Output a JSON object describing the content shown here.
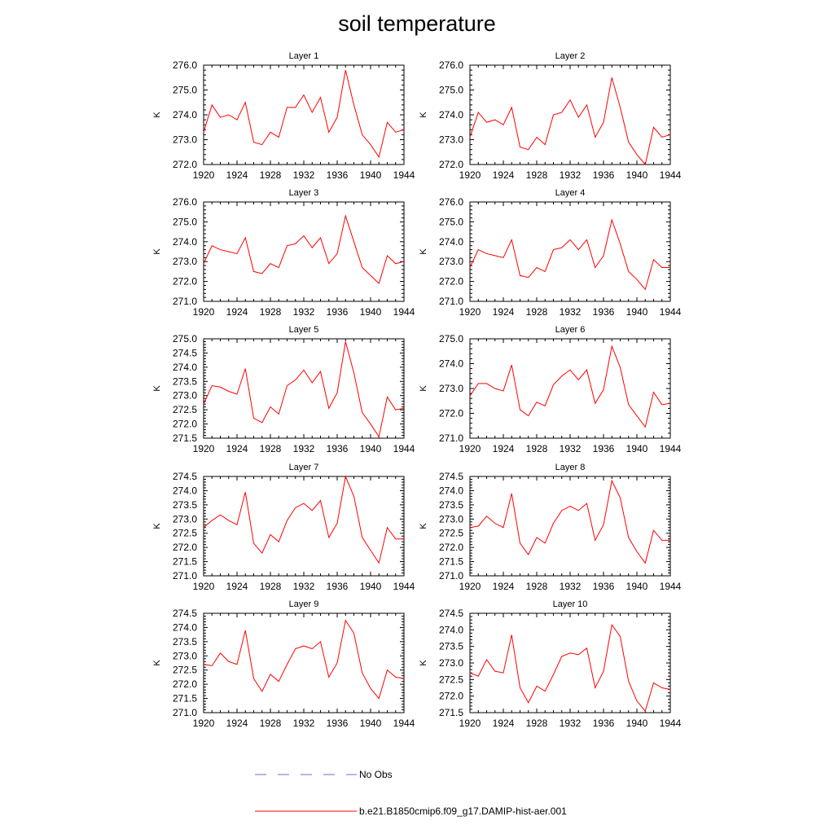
{
  "title": "soil temperature",
  "legend": [
    {
      "label": "No Obs",
      "color": "#6f6fc8",
      "dash": "14,14"
    },
    {
      "label": "b.e21.B1850cmip6.f09_g17.DAMIP-hist-aer.001",
      "color": "#ff0000",
      "dash": ""
    }
  ],
  "chart_data": [
    {
      "type": "line",
      "title": "Layer 1",
      "ylabel": "K",
      "xlim": [
        1920,
        1944
      ],
      "ylim": [
        272.0,
        276.0
      ],
      "xticks": [
        "1920",
        "1924",
        "1928",
        "1932",
        "1936",
        "1940",
        "1944"
      ],
      "yticks": [
        "272.0",
        "273.0",
        "274.0",
        "275.0",
        "276.0"
      ],
      "x": [
        1920,
        1921,
        1922,
        1923,
        1924,
        1925,
        1926,
        1927,
        1928,
        1929,
        1930,
        1931,
        1932,
        1933,
        1934,
        1935,
        1936,
        1937,
        1938,
        1939,
        1940,
        1941,
        1942,
        1943,
        1944
      ],
      "series": [
        {
          "color": "#ff0000",
          "values": [
            273.3,
            274.4,
            273.9,
            274.0,
            273.8,
            274.5,
            272.9,
            272.8,
            273.3,
            273.1,
            274.3,
            274.3,
            274.8,
            274.1,
            274.7,
            273.3,
            273.9,
            275.8,
            274.4,
            273.2,
            272.8,
            272.3,
            273.7,
            273.3,
            273.4
          ]
        }
      ]
    },
    {
      "type": "line",
      "title": "Layer 2",
      "ylabel": "K",
      "xlim": [
        1920,
        1944
      ],
      "ylim": [
        272.0,
        276.0
      ],
      "xticks": [
        "1920",
        "1924",
        "1928",
        "1932",
        "1936",
        "1940",
        "1944"
      ],
      "yticks": [
        "272.0",
        "273.0",
        "274.0",
        "275.0",
        "276.0"
      ],
      "x": [
        1920,
        1921,
        1922,
        1923,
        1924,
        1925,
        1926,
        1927,
        1928,
        1929,
        1930,
        1931,
        1932,
        1933,
        1934,
        1935,
        1936,
        1937,
        1938,
        1939,
        1940,
        1941,
        1942,
        1943,
        1944
      ],
      "series": [
        {
          "color": "#ff0000",
          "values": [
            273.1,
            274.1,
            273.7,
            273.8,
            273.6,
            274.3,
            272.7,
            272.6,
            273.1,
            272.8,
            274.0,
            274.1,
            274.6,
            273.9,
            274.4,
            273.1,
            273.7,
            275.5,
            274.3,
            272.9,
            272.4,
            272.0,
            273.5,
            273.1,
            273.2
          ]
        }
      ]
    },
    {
      "type": "line",
      "title": "Layer 3",
      "ylabel": "K",
      "xlim": [
        1920,
        1944
      ],
      "ylim": [
        271.0,
        276.0
      ],
      "xticks": [
        "1920",
        "1924",
        "1928",
        "1932",
        "1936",
        "1940",
        "1944"
      ],
      "yticks": [
        "271.0",
        "272.0",
        "273.0",
        "274.0",
        "275.0",
        "276.0"
      ],
      "x": [
        1920,
        1921,
        1922,
        1923,
        1924,
        1925,
        1926,
        1927,
        1928,
        1929,
        1930,
        1931,
        1932,
        1933,
        1934,
        1935,
        1936,
        1937,
        1938,
        1939,
        1940,
        1941,
        1942,
        1943,
        1944
      ],
      "series": [
        {
          "color": "#ff0000",
          "values": [
            272.9,
            273.8,
            273.6,
            273.5,
            273.4,
            274.2,
            272.5,
            272.4,
            272.9,
            272.7,
            273.8,
            273.9,
            274.3,
            273.7,
            274.2,
            272.9,
            273.4,
            275.3,
            274.0,
            272.7,
            272.3,
            271.9,
            273.3,
            272.9,
            273.0
          ]
        }
      ]
    },
    {
      "type": "line",
      "title": "Layer 4",
      "ylabel": "K",
      "xlim": [
        1920,
        1944
      ],
      "ylim": [
        271.0,
        276.0
      ],
      "xticks": [
        "1920",
        "1924",
        "1928",
        "1932",
        "1936",
        "1940",
        "1944"
      ],
      "yticks": [
        "271.0",
        "272.0",
        "273.0",
        "274.0",
        "275.0",
        "276.0"
      ],
      "x": [
        1920,
        1921,
        1922,
        1923,
        1924,
        1925,
        1926,
        1927,
        1928,
        1929,
        1930,
        1931,
        1932,
        1933,
        1934,
        1935,
        1936,
        1937,
        1938,
        1939,
        1940,
        1941,
        1942,
        1943,
        1944
      ],
      "series": [
        {
          "color": "#ff0000",
          "values": [
            272.7,
            273.6,
            273.4,
            273.3,
            273.2,
            274.1,
            272.3,
            272.2,
            272.7,
            272.5,
            273.6,
            273.7,
            274.1,
            273.6,
            274.1,
            272.7,
            273.3,
            275.1,
            273.9,
            272.5,
            272.1,
            271.6,
            273.1,
            272.7,
            272.7
          ]
        }
      ]
    },
    {
      "type": "line",
      "title": "Layer 5",
      "ylabel": "K",
      "xlim": [
        1920,
        1944
      ],
      "ylim": [
        271.5,
        275.0
      ],
      "xticks": [
        "1920",
        "1924",
        "1928",
        "1932",
        "1936",
        "1940",
        "1944"
      ],
      "yticks": [
        "271.5",
        "272.0",
        "272.5",
        "273.0",
        "273.5",
        "274.0",
        "274.5",
        "275.0"
      ],
      "x": [
        1920,
        1921,
        1922,
        1923,
        1924,
        1925,
        1926,
        1927,
        1928,
        1929,
        1930,
        1931,
        1932,
        1933,
        1934,
        1935,
        1936,
        1937,
        1938,
        1939,
        1940,
        1941,
        1942,
        1943,
        1944
      ],
      "series": [
        {
          "color": "#ff0000",
          "values": [
            272.7,
            273.35,
            273.3,
            273.15,
            273.05,
            273.95,
            272.2,
            272.05,
            272.6,
            272.35,
            273.35,
            273.55,
            273.9,
            273.45,
            273.85,
            272.55,
            273.1,
            274.9,
            273.8,
            272.4,
            272.0,
            271.55,
            272.95,
            272.5,
            272.55
          ]
        }
      ]
    },
    {
      "type": "line",
      "title": "Layer 6",
      "ylabel": "K",
      "xlim": [
        1920,
        1944
      ],
      "ylim": [
        271.0,
        275.0
      ],
      "xticks": [
        "1920",
        "1924",
        "1928",
        "1932",
        "1936",
        "1940",
        "1944"
      ],
      "yticks": [
        "271.0",
        "272.0",
        "273.0",
        "274.0",
        "275.0"
      ],
      "x": [
        1920,
        1921,
        1922,
        1923,
        1924,
        1925,
        1926,
        1927,
        1928,
        1929,
        1930,
        1931,
        1932,
        1933,
        1934,
        1935,
        1936,
        1937,
        1938,
        1939,
        1940,
        1941,
        1942,
        1943,
        1944
      ],
      "series": [
        {
          "color": "#ff0000",
          "values": [
            272.7,
            273.2,
            273.2,
            273.0,
            272.9,
            273.95,
            272.15,
            271.9,
            272.45,
            272.3,
            273.15,
            273.5,
            273.75,
            273.35,
            273.75,
            272.4,
            272.95,
            274.7,
            273.85,
            272.35,
            271.9,
            271.45,
            272.85,
            272.35,
            272.4
          ]
        }
      ]
    },
    {
      "type": "line",
      "title": "Layer 7",
      "ylabel": "K",
      "xlim": [
        1920,
        1944
      ],
      "ylim": [
        271.0,
        274.5
      ],
      "xticks": [
        "1920",
        "1924",
        "1928",
        "1932",
        "1936",
        "1940",
        "1944"
      ],
      "yticks": [
        "271.0",
        "271.5",
        "272.0",
        "272.5",
        "273.0",
        "273.5",
        "274.0",
        "274.5"
      ],
      "x": [
        1920,
        1921,
        1922,
        1923,
        1924,
        1925,
        1926,
        1927,
        1928,
        1929,
        1930,
        1931,
        1932,
        1933,
        1934,
        1935,
        1936,
        1937,
        1938,
        1939,
        1940,
        1941,
        1942,
        1943,
        1944
      ],
      "series": [
        {
          "color": "#ff0000",
          "values": [
            272.7,
            272.95,
            273.15,
            272.95,
            272.8,
            273.95,
            272.15,
            271.8,
            272.45,
            272.2,
            272.95,
            273.4,
            273.55,
            273.3,
            273.65,
            272.35,
            272.85,
            274.5,
            273.8,
            272.35,
            271.9,
            271.45,
            272.7,
            272.3,
            272.3
          ]
        }
      ]
    },
    {
      "type": "line",
      "title": "Layer 8",
      "ylabel": "K",
      "xlim": [
        1920,
        1944
      ],
      "ylim": [
        271.0,
        274.5
      ],
      "xticks": [
        "1920",
        "1924",
        "1928",
        "1932",
        "1936",
        "1940",
        "1944"
      ],
      "yticks": [
        "271.0",
        "271.5",
        "272.0",
        "272.5",
        "273.0",
        "273.5",
        "274.0",
        "274.5"
      ],
      "x": [
        1920,
        1921,
        1922,
        1923,
        1924,
        1925,
        1926,
        1927,
        1928,
        1929,
        1930,
        1931,
        1932,
        1933,
        1934,
        1935,
        1936,
        1937,
        1938,
        1939,
        1940,
        1941,
        1942,
        1943,
        1944
      ],
      "series": [
        {
          "color": "#ff0000",
          "values": [
            272.7,
            272.75,
            273.1,
            272.85,
            272.7,
            273.9,
            272.15,
            271.75,
            272.35,
            272.15,
            272.85,
            273.3,
            273.45,
            273.3,
            273.55,
            272.25,
            272.8,
            274.35,
            273.75,
            272.35,
            271.85,
            271.45,
            272.6,
            272.25,
            272.25
          ]
        }
      ]
    },
    {
      "type": "line",
      "title": "Layer 9",
      "ylabel": "K",
      "xlim": [
        1920,
        1944
      ],
      "ylim": [
        271.0,
        274.5
      ],
      "xticks": [
        "1920",
        "1924",
        "1928",
        "1932",
        "1936",
        "1940",
        "1944"
      ],
      "yticks": [
        "271.0",
        "271.5",
        "272.0",
        "272.5",
        "273.0",
        "273.5",
        "274.0",
        "274.5"
      ],
      "x": [
        1920,
        1921,
        1922,
        1923,
        1924,
        1925,
        1926,
        1927,
        1928,
        1929,
        1930,
        1931,
        1932,
        1933,
        1934,
        1935,
        1936,
        1937,
        1938,
        1939,
        1940,
        1941,
        1942,
        1943,
        1944
      ],
      "series": [
        {
          "color": "#ff0000",
          "values": [
            272.7,
            272.65,
            273.1,
            272.8,
            272.7,
            273.9,
            272.2,
            271.75,
            272.35,
            272.1,
            272.7,
            273.25,
            273.35,
            273.25,
            273.5,
            272.25,
            272.75,
            274.25,
            273.8,
            272.4,
            271.85,
            271.5,
            272.5,
            272.25,
            272.2
          ]
        }
      ]
    },
    {
      "type": "line",
      "title": "Layer 10",
      "ylabel": "K",
      "xlim": [
        1920,
        1944
      ],
      "ylim": [
        271.5,
        274.5
      ],
      "xticks": [
        "1920",
        "1924",
        "1928",
        "1932",
        "1936",
        "1940",
        "1944"
      ],
      "yticks": [
        "271.5",
        "272.0",
        "272.5",
        "273.0",
        "273.5",
        "274.0",
        "274.5"
      ],
      "x": [
        1920,
        1921,
        1922,
        1923,
        1924,
        1925,
        1926,
        1927,
        1928,
        1929,
        1930,
        1931,
        1932,
        1933,
        1934,
        1935,
        1936,
        1937,
        1938,
        1939,
        1940,
        1941,
        1942,
        1943,
        1944
      ],
      "series": [
        {
          "color": "#ff0000",
          "values": [
            272.7,
            272.6,
            273.1,
            272.75,
            272.7,
            273.85,
            272.25,
            271.8,
            272.3,
            272.15,
            272.65,
            273.2,
            273.3,
            273.25,
            273.45,
            272.25,
            272.75,
            274.15,
            273.8,
            272.45,
            271.85,
            271.55,
            272.4,
            272.25,
            272.2
          ]
        }
      ]
    }
  ]
}
